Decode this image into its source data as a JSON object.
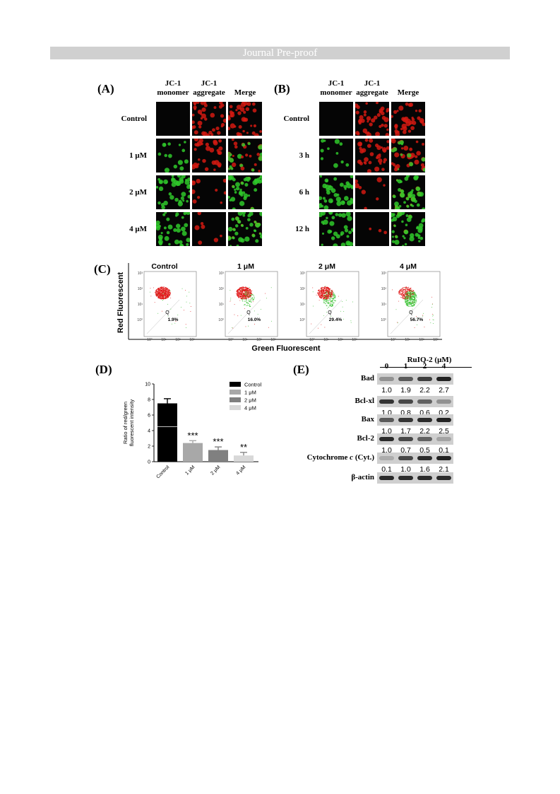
{
  "header": {
    "banner": "Journal Pre-proof"
  },
  "panel_a": {
    "label": "(A)",
    "columns": [
      "JC-1\nmonomer",
      "JC-1\naggregate",
      "Merge"
    ],
    "rows": [
      {
        "label": "Control",
        "green": 0.0,
        "red": 1.0
      },
      {
        "label": "1 μM",
        "green": 0.35,
        "red": 0.8
      },
      {
        "label": "2 μM",
        "green": 0.95,
        "red": 0.25
      },
      {
        "label": "4 μM",
        "green": 0.9,
        "red": 0.15
      }
    ]
  },
  "panel_b": {
    "label": "(B)",
    "columns": [
      "JC-1\nmonomer",
      "JC-1\naggregate",
      "Merge"
    ],
    "rows": [
      {
        "label": "Control",
        "green": 0.0,
        "red": 1.0
      },
      {
        "label": "3 h",
        "green": 0.3,
        "red": 0.85
      },
      {
        "label": "6 h",
        "green": 0.95,
        "red": 0.3
      },
      {
        "label": "12 h",
        "green": 0.9,
        "red": 0.12
      }
    ]
  },
  "panel_c": {
    "label": "(C)",
    "ylabel": "Red Fluorescent",
    "xlabel": "Green Fluorescent",
    "gate": "Q",
    "plots": [
      {
        "title": "Control",
        "value": "1.9%",
        "green_frac": 0.02
      },
      {
        "title": "1 μM",
        "value": "16.0%",
        "green_frac": 0.16
      },
      {
        "title": "2 μM",
        "value": "29.4%",
        "green_frac": 0.29
      },
      {
        "title": "4 μM",
        "value": "56.7%",
        "green_frac": 0.57
      }
    ],
    "y_ticks": [
      "10³",
      "10²",
      "10¹",
      "10⁰"
    ],
    "x_ticks": [
      "10⁰",
      "10¹",
      "10²",
      "10³"
    ]
  },
  "chart_data": {
    "type": "bar",
    "label": "(D)",
    "ylabel": "Ratio of red/green\nfluorescent intensity",
    "categories": [
      "Control",
      "1 μM",
      "2 μM",
      "4 μM"
    ],
    "values": [
      7.5,
      2.4,
      1.5,
      0.8
    ],
    "errors": [
      0.6,
      0.3,
      0.4,
      0.4
    ],
    "significance": [
      "",
      "***",
      "***",
      "**"
    ],
    "colors": [
      "#000000",
      "#a8a8a8",
      "#808080",
      "#d8d8d8"
    ],
    "legend": [
      "Control",
      "1 μM",
      "2 μM",
      "4 μM"
    ],
    "legend_position": "top-right",
    "ylim": [
      0,
      10
    ],
    "yticks": [
      0,
      2,
      4,
      6,
      8,
      10
    ]
  },
  "panel_e": {
    "label": "(E)",
    "treatment": "RuIQ-2 (μM)",
    "lanes": [
      "0",
      "1",
      "2",
      "4"
    ],
    "blots": [
      {
        "name": "Bad",
        "values": [
          "1.0",
          "1.9",
          "2.2",
          "2.7"
        ],
        "intensity": [
          0.3,
          0.6,
          0.75,
          0.9
        ]
      },
      {
        "name": "Bcl-xl",
        "values": [
          "1.0",
          "0.8",
          "0.6",
          "0.2"
        ],
        "intensity": [
          0.8,
          0.7,
          0.55,
          0.3
        ]
      },
      {
        "name": "Bax",
        "values": [
          "1.0",
          "1.7",
          "2.2",
          "2.5"
        ],
        "intensity": [
          0.6,
          0.8,
          0.85,
          0.9
        ]
      },
      {
        "name": "Bcl-2",
        "values": [
          "1.0",
          "0.7",
          "0.5",
          "0.1"
        ],
        "intensity": [
          0.85,
          0.7,
          0.55,
          0.2
        ]
      },
      {
        "name": "Cytochrome c (Cyt.)",
        "name_prefix": "Cytochrome ",
        "name_italic": "c",
        "name_suffix": " (Cyt.)",
        "values": [
          "0.1",
          "1.0",
          "1.6",
          "2.1"
        ],
        "intensity": [
          0.15,
          0.7,
          0.85,
          0.9
        ]
      },
      {
        "name": "β-actin",
        "values": [],
        "intensity": [
          0.85,
          0.85,
          0.85,
          0.85
        ]
      }
    ]
  }
}
